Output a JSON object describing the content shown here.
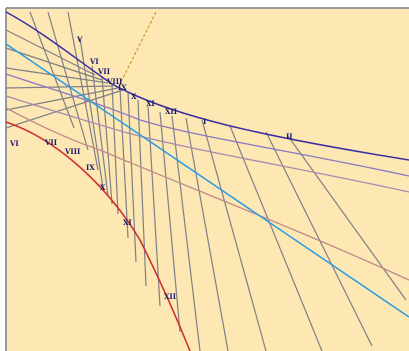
{
  "colors": {
    "background": "#fde8b4",
    "frame": "#9a9a9a",
    "top_curve": "#3a2fa0",
    "equinox_line": "#2a9be0",
    "bottom_curve": "#d03030",
    "hour_line": "#7f7f86",
    "noon_marker": "#c89a2a",
    "label": "#1a1a6e"
  },
  "hour_labels": {
    "top_row": [
      "V",
      "VI",
      "VII",
      "VIII",
      "IX",
      "X",
      "XI",
      "XII",
      "I",
      "II"
    ],
    "bottom_row": [
      "VI",
      "VII",
      "VIII",
      "IX",
      "X",
      "XI",
      "XII"
    ]
  }
}
